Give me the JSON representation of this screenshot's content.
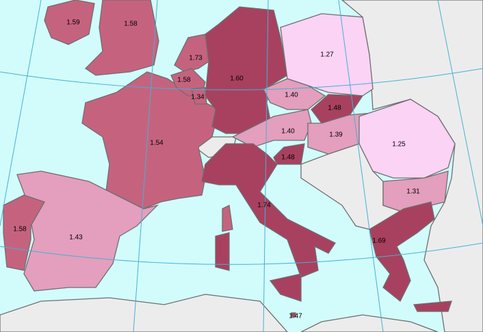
{
  "regions": [
    {
      "value": 1.59,
      "label": "1.59",
      "color": "#c5637f"
    },
    {
      "value": 1.58,
      "label": "1.58",
      "color": "#c5637f"
    },
    {
      "value": 1.73,
      "label": "1.73",
      "color": "#c5637f"
    },
    {
      "value": 1.58,
      "label": "1.58",
      "color": "#c5637f"
    },
    {
      "value": 1.34,
      "label": "1.34",
      "color": "#c5637f"
    },
    {
      "value": 1.6,
      "label": "1.60",
      "color": "#a8415f"
    },
    {
      "value": 1.27,
      "label": "1.27",
      "color": "#fbd3f5"
    },
    {
      "value": 1.4,
      "label": "1.40",
      "color": "#e39fbd"
    },
    {
      "value": 1.48,
      "label": "1.48",
      "color": "#a8415f"
    },
    {
      "value": 1.54,
      "label": "1.54",
      "color": "#c5637f"
    },
    {
      "value": 1.4,
      "label": "1.40",
      "color": "#e39fbd"
    },
    {
      "value": 1.39,
      "label": "1.39",
      "color": "#e39fbd"
    },
    {
      "value": 1.25,
      "label": "1.25",
      "color": "#fbd3f5"
    },
    {
      "value": 1.48,
      "label": "1.48",
      "color": "#a8415f"
    },
    {
      "value": 1.31,
      "label": "1.31",
      "color": "#e39fbd"
    },
    {
      "value": 1.58,
      "label": "1.58",
      "color": "#c5637f"
    },
    {
      "value": 1.43,
      "label": "1.43",
      "color": "#e39fbd"
    },
    {
      "value": 1.74,
      "label": "1.74",
      "color": "#a8415f"
    },
    {
      "value": 1.69,
      "label": "1.69",
      "color": "#a8415f"
    },
    {
      "value": 1.47,
      "label": "1.47",
      "color": "#a8415f"
    }
  ]
}
